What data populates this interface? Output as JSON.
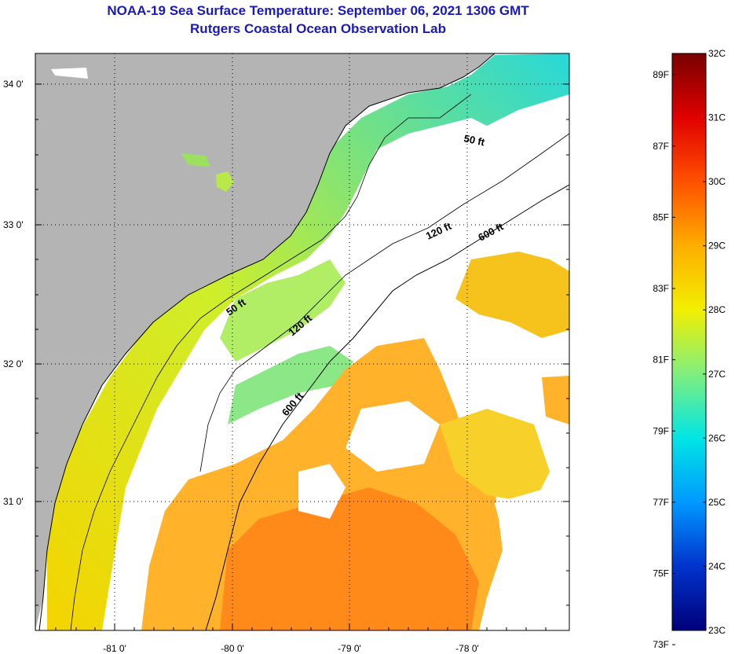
{
  "header": {
    "title": "NOAA-19 Sea Surface Temperature:  September 06, 2021 1306 GMT",
    "subtitle": "Rutgers Coastal Ocean Observation Lab"
  },
  "map": {
    "lat_labels": [
      "34 0'",
      "33 0'",
      "32 0'",
      "31 0'"
    ],
    "lon_labels": [
      "-81 0'",
      "-80 0'",
      "-79 0'",
      "-78 0'"
    ],
    "contours": [
      {
        "label": "50 ft"
      },
      {
        "label": "50 ft"
      },
      {
        "label": "120 ft"
      },
      {
        "label": "120 ft"
      },
      {
        "label": "600 ft"
      },
      {
        "label": "600 ft"
      }
    ],
    "colors": {
      "land": "#b4b4b4",
      "cloud": "#ffffff"
    }
  },
  "colorbar": {
    "fahrenheit": [
      "89F",
      "87F",
      "85F",
      "83F",
      "81F",
      "79F",
      "77F",
      "75F",
      "73F"
    ],
    "celsius": [
      "32C",
      "31C",
      "30C",
      "29C",
      "28C",
      "27C",
      "26C",
      "25C",
      "24C",
      "23C"
    ],
    "range_c": [
      23,
      32
    ],
    "stops": [
      "#00007a",
      "#0033cc",
      "#0099ff",
      "#00e5e5",
      "#7fef7f",
      "#f2ef00",
      "#ffad00",
      "#ff5000",
      "#e00000",
      "#7a0000"
    ]
  }
}
